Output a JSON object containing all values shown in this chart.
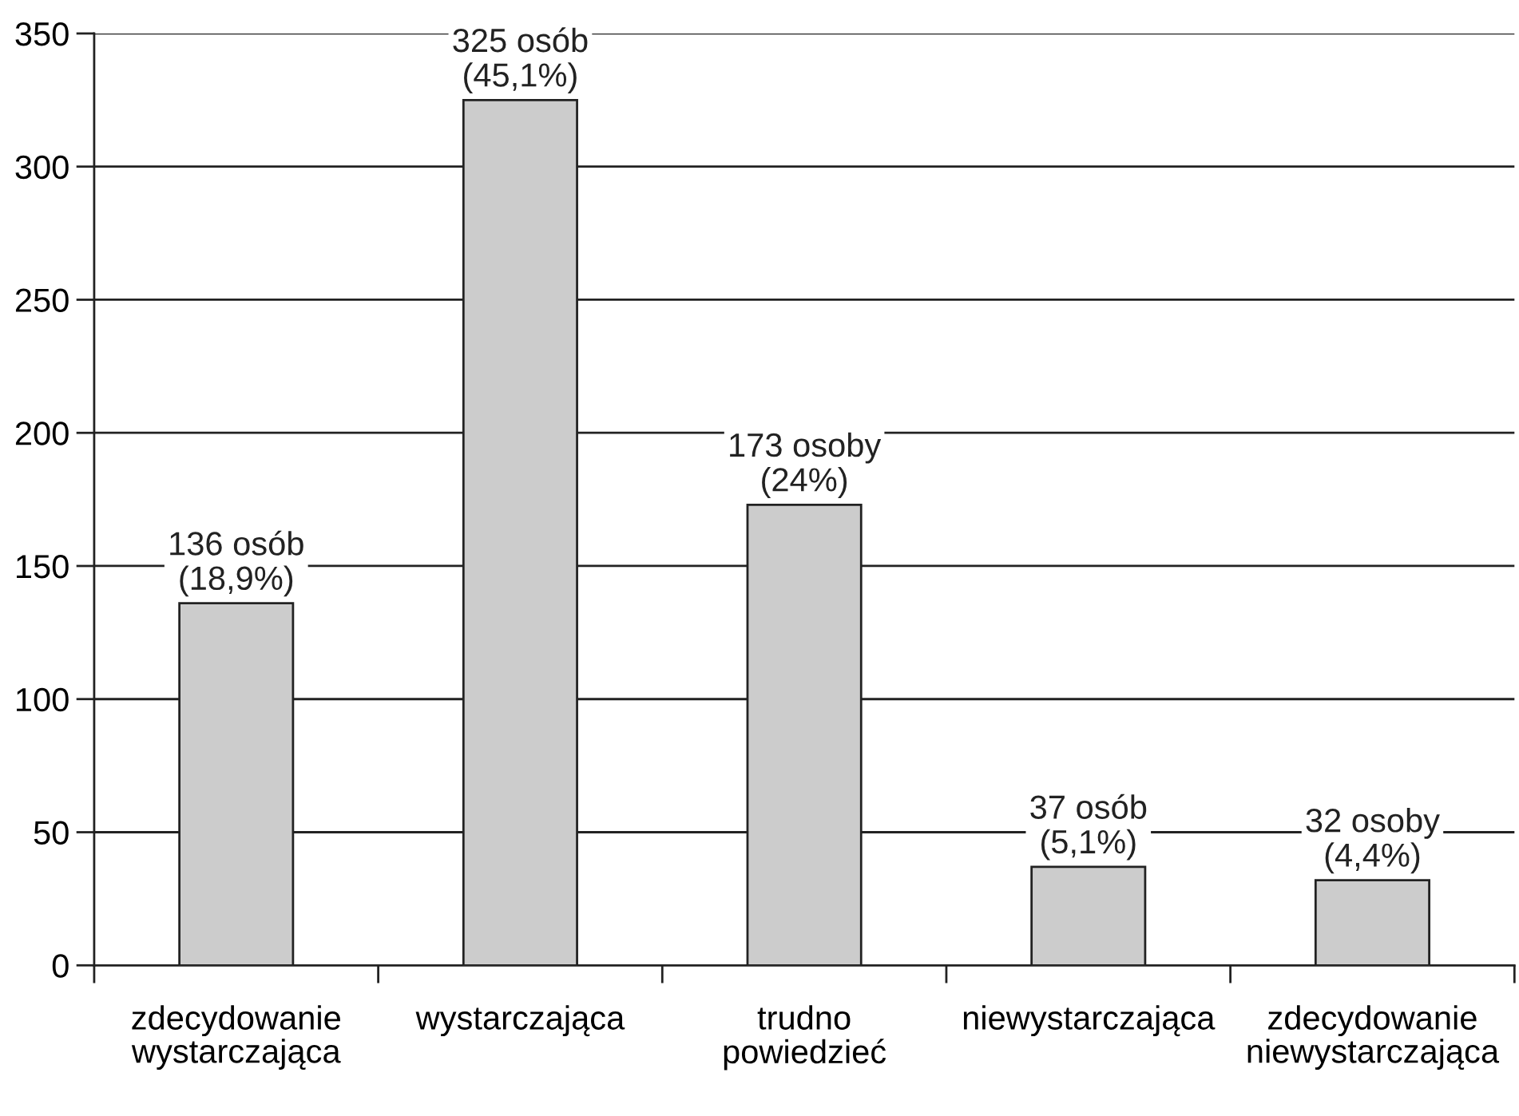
{
  "chart_data": {
    "type": "bar",
    "categories": [
      "zdecydowanie\nwystarczająca",
      "wystarczająca",
      "trudno\npowiedzieć",
      "niewystarczająca",
      "zdecydowanie\nniewystarczająca"
    ],
    "values": [
      136,
      325,
      173,
      37,
      32
    ],
    "color": "#cccccc",
    "value_labels": [
      "136 osób\n(18,9%)",
      "325 osób\n(45,1%)",
      "173 osoby\n(24%)",
      "37 osób\n(5,1%)",
      "32 osoby\n(4,4%)"
    ],
    "ylim": [
      0,
      350
    ],
    "yticks": [
      0,
      50,
      100,
      150,
      200,
      250,
      300,
      350
    ],
    "grid": "y"
  }
}
